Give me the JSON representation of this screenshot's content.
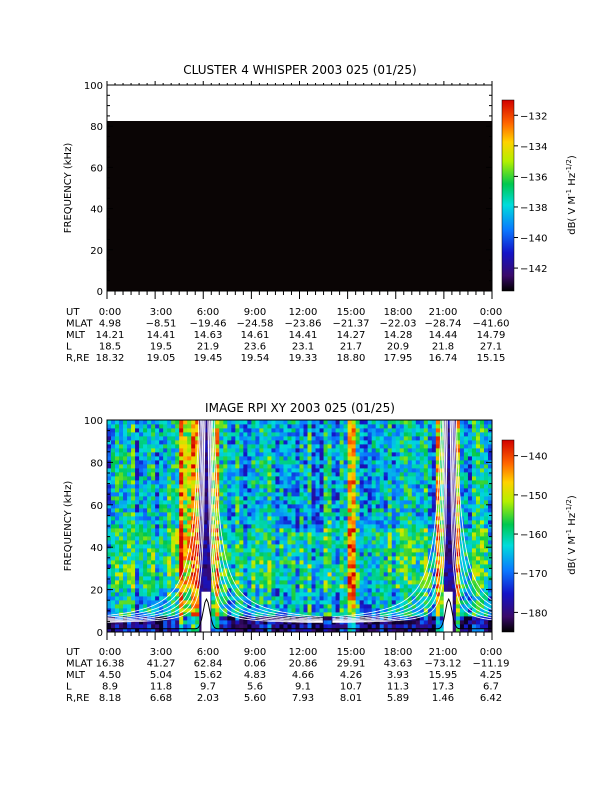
{
  "chart_data": [
    {
      "type": "heatmap",
      "title": "CLUSTER 4 WHISPER 2003 025 (01/25)",
      "ylabel": "FREQUENCY (kHz)",
      "ylim": [
        0,
        100
      ],
      "yticks": [
        "0",
        "20",
        "40",
        "60",
        "80",
        "100"
      ],
      "xticks": [
        "0:00",
        "3:00",
        "6:00",
        "9:00",
        "12:00",
        "15:00",
        "18:00",
        "21:00",
        "0:00"
      ],
      "data_region": {
        "freq_min": 0,
        "freq_max": 80,
        "fill": "#0a0505"
      },
      "colorbar": {
        "label": "dB( V M⁻¹ Hz⁻¹ᐟ²)",
        "label_text": "dB( V M",
        "range": [
          -143.5,
          -131
        ],
        "ticks": [
          "-132",
          "-134",
          "-136",
          "-138",
          "-140",
          "-142"
        ],
        "tick_values": [
          -132,
          -134,
          -136,
          -138,
          -140,
          -142
        ]
      },
      "ephemeris": {
        "labels": [
          "UT",
          "MLAT",
          "MLT",
          "L",
          "R,RE"
        ],
        "rows": [
          [
            "0:00",
            "3:00",
            "6:00",
            "9:00",
            "12:00",
            "15:00",
            "18:00",
            "21:00",
            "0:00"
          ],
          [
            "4.98",
            "-8.51",
            "-19.46",
            "-24.58",
            "-23.86",
            "-21.37",
            "-22.03",
            "-28.74",
            "-41.60"
          ],
          [
            "14.21",
            "14.41",
            "14.63",
            "14.61",
            "14.41",
            "14.27",
            "14.28",
            "14.44",
            "14.79"
          ],
          [
            "18.5",
            "19.5",
            "21.9",
            "23.6",
            "23.1",
            "21.7",
            "20.9",
            "21.8",
            "27.1"
          ],
          [
            "18.32",
            "19.05",
            "19.45",
            "19.54",
            "19.33",
            "18.80",
            "17.95",
            "16.74",
            "15.15"
          ]
        ]
      }
    },
    {
      "type": "heatmap",
      "title": "IMAGE RPI XY 2003 025 (01/25)",
      "ylabel": "FREQUENCY (kHz)",
      "ylim": [
        0,
        100
      ],
      "yticks": [
        "0",
        "20",
        "40",
        "60",
        "80",
        "100"
      ],
      "xticks": [
        "0:00",
        "3:00",
        "6:00",
        "9:00",
        "12:00",
        "15:00",
        "18:00",
        "21:00",
        "0:00"
      ],
      "colorbar": {
        "label_text": "dB( V M",
        "range": [
          -185,
          -136
        ],
        "ticks": [
          "-140",
          "-150",
          "-160",
          "-170",
          "-180"
        ],
        "tick_values": [
          -140,
          -150,
          -160,
          -170,
          -180
        ]
      },
      "overlays": {
        "white_line_color": "#ffffff",
        "black_line_color": "#000000",
        "perigee_hours": [
          6.2,
          21.3
        ],
        "bright_bands_hours": [
          [
            4.6,
            5.4
          ],
          [
            15.1,
            15.6
          ]
        ]
      },
      "ephemeris": {
        "labels": [
          "UT",
          "MLAT",
          "MLT",
          "L",
          "R,RE"
        ],
        "rows": [
          [
            "0:00",
            "3:00",
            "6:00",
            "9:00",
            "12:00",
            "15:00",
            "18:00",
            "21:00",
            "0:00"
          ],
          [
            "16.38",
            "41.27",
            "62.84",
            "0.06",
            "20.86",
            "29.91",
            "43.63",
            "-73.12",
            "-11.19"
          ],
          [
            "4.50",
            "5.04",
            "15.62",
            "4.83",
            "4.66",
            "4.26",
            "3.93",
            "15.95",
            "4.25"
          ],
          [
            "8.9",
            "11.8",
            "9.7",
            "5.6",
            "9.1",
            "10.7",
            "11.3",
            "17.3",
            "6.7"
          ],
          [
            "8.18",
            "6.68",
            "2.03",
            "5.60",
            "7.93",
            "8.01",
            "5.89",
            "1.46",
            "6.42"
          ]
        ]
      }
    }
  ]
}
